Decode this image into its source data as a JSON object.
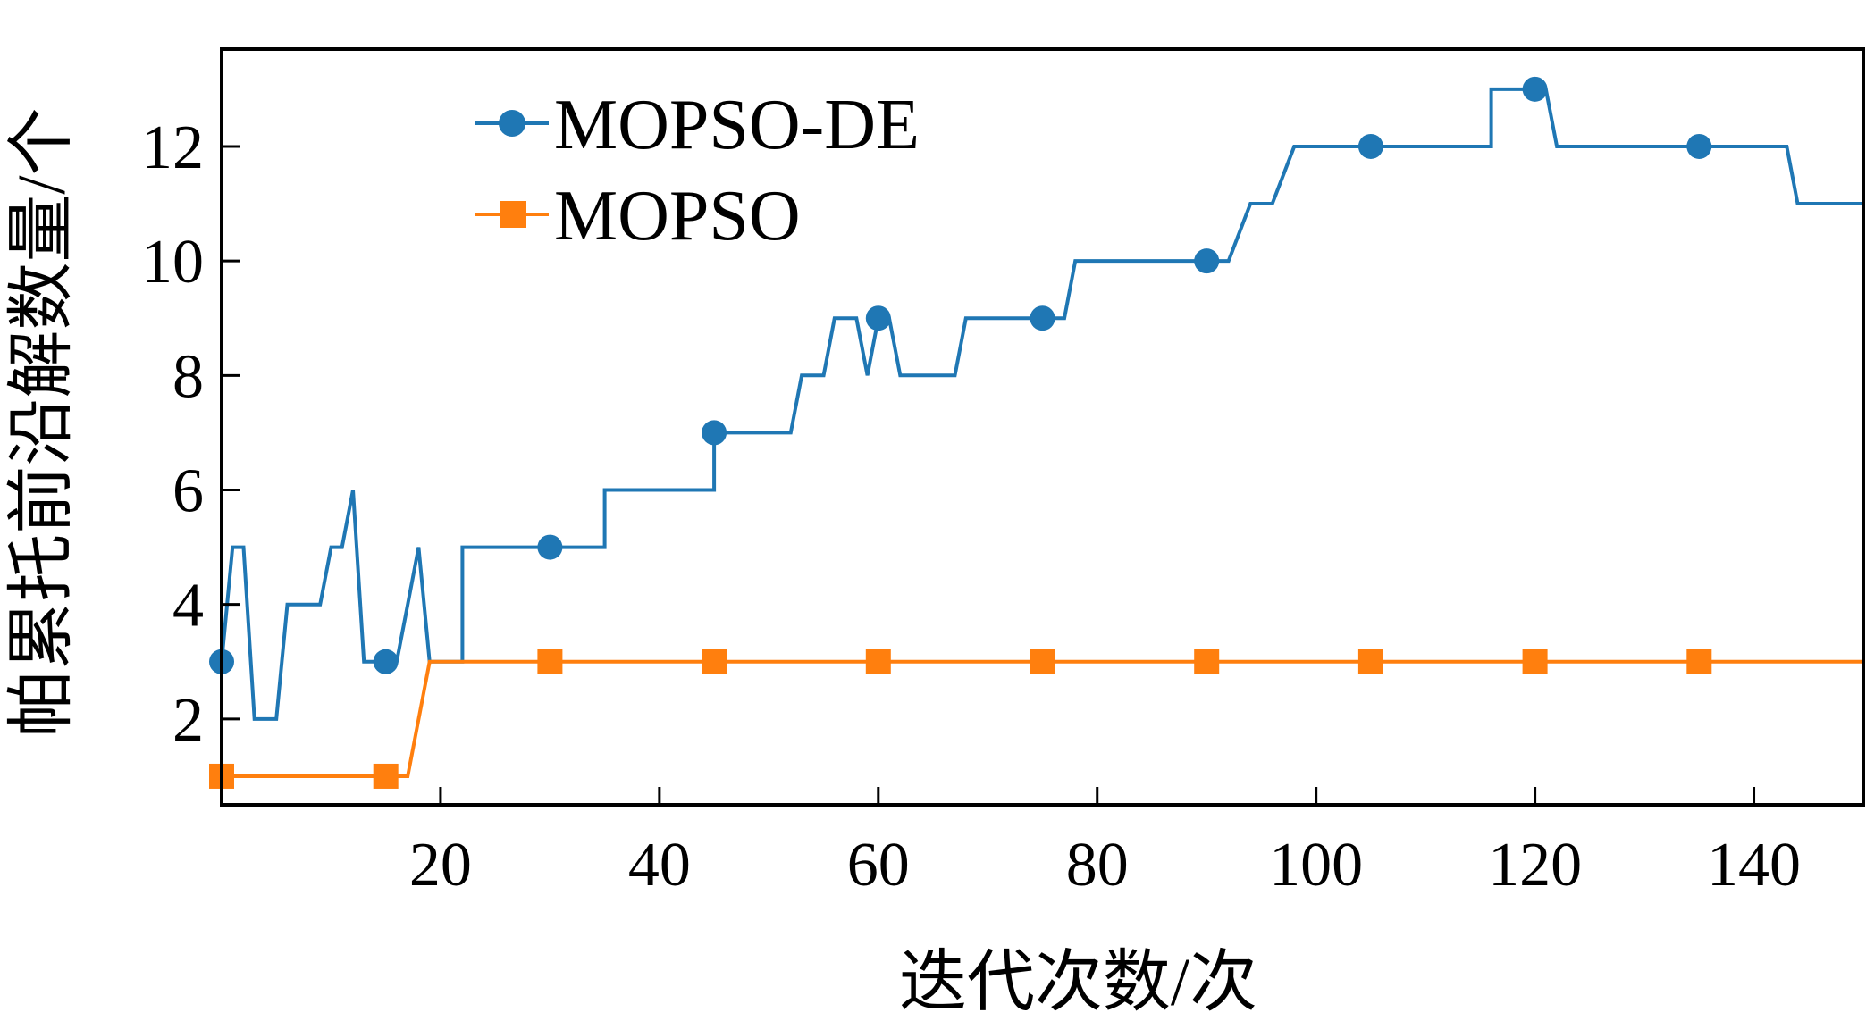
{
  "chart_data": {
    "type": "line",
    "title": "",
    "xlabel": "迭代次数/次",
    "ylabel": "帕累托前沿解数量/个",
    "xlim": [
      0,
      150
    ],
    "ylim": [
      0.5,
      13.7
    ],
    "xticks": [
      20,
      40,
      60,
      80,
      100,
      120,
      140
    ],
    "yticks": [
      2,
      4,
      6,
      8,
      10,
      12
    ],
    "grid": false,
    "legend_position": "top-left",
    "series": [
      {
        "name": "MOPSO-DE",
        "color": "#1f77b4",
        "marker": "circle",
        "x": [
          0,
          1,
          2,
          2,
          3,
          3,
          4,
          5,
          5,
          6,
          7,
          7,
          8,
          9,
          9,
          10,
          10,
          11,
          11,
          12,
          12,
          13,
          13,
          14,
          15,
          16,
          16,
          17,
          17,
          18,
          19,
          21,
          22,
          22,
          24,
          24,
          28,
          29,
          33,
          35,
          35,
          38,
          43,
          44,
          45,
          45,
          47,
          48,
          52,
          53,
          54,
          55,
          56,
          57,
          58,
          59,
          59,
          60,
          61,
          61,
          62,
          63,
          66,
          67,
          68,
          68,
          69,
          73,
          74,
          75,
          75,
          77,
          78,
          79,
          82,
          84,
          85,
          86,
          88,
          89,
          90,
          91,
          92,
          94,
          96,
          98,
          99,
          102,
          103,
          106,
          108,
          110,
          111,
          113,
          115,
          116,
          116,
          118,
          121,
          122,
          123,
          126,
          130,
          131,
          136,
          143,
          143,
          144,
          146,
          150
        ],
        "y": [
          3,
          5,
          5,
          5,
          2,
          2,
          2,
          2,
          2,
          4,
          4,
          4,
          4,
          4,
          4,
          5,
          5,
          5,
          5,
          6,
          6,
          3,
          3,
          3,
          3,
          3,
          3,
          4,
          4,
          5,
          3,
          3,
          3,
          5,
          5,
          5,
          5,
          5,
          5,
          5,
          6,
          6,
          6,
          6,
          6,
          7,
          7,
          7,
          7,
          8,
          8,
          8,
          9,
          9,
          9,
          8,
          8,
          9,
          9,
          9,
          8,
          8,
          8,
          8,
          9,
          9,
          9,
          9,
          9,
          9,
          9,
          9,
          10,
          10,
          10,
          10,
          10,
          10,
          10,
          10,
          10,
          10,
          10,
          11,
          11,
          12,
          12,
          12,
          12,
          12,
          12,
          12,
          12,
          12,
          12,
          12,
          13,
          13,
          13,
          12,
          12,
          12,
          12,
          12,
          12,
          12,
          12,
          11,
          11,
          11
        ],
        "marker_x": [
          0,
          15,
          30,
          45,
          60,
          75,
          90,
          105,
          120,
          135
        ],
        "marker_y": [
          3,
          3,
          5,
          7,
          9,
          9,
          10,
          12,
          13,
          12
        ]
      },
      {
        "name": "MOPSO",
        "color": "#ff7f0e",
        "marker": "square",
        "x": [
          0,
          17,
          19,
          150
        ],
        "y": [
          1,
          1,
          3,
          3
        ],
        "marker_x": [
          0,
          15,
          30,
          45,
          60,
          75,
          90,
          105,
          120,
          135
        ],
        "marker_y": [
          1,
          1,
          3,
          3,
          3,
          3,
          3,
          3,
          3,
          3
        ]
      }
    ]
  }
}
